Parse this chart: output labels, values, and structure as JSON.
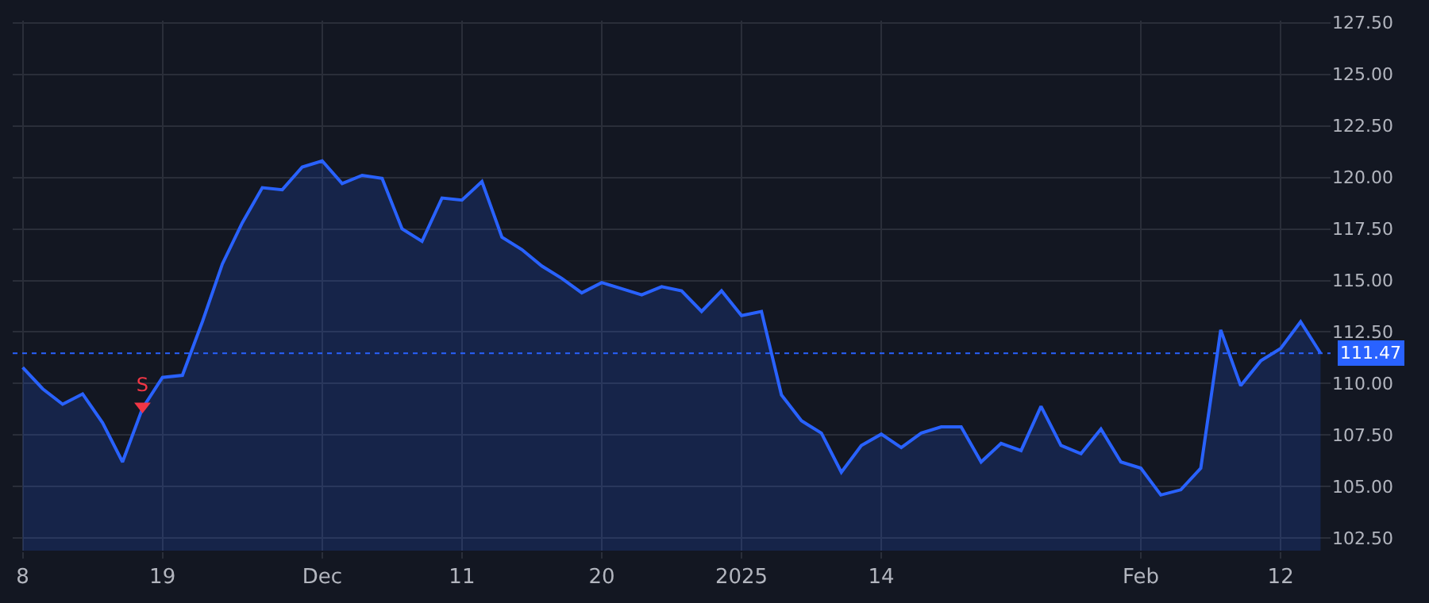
{
  "chart_data": {
    "type": "area",
    "categories": [
      "8",
      null,
      null,
      null,
      null,
      null,
      null,
      "19",
      null,
      null,
      null,
      null,
      null,
      null,
      null,
      "Dec",
      null,
      null,
      null,
      null,
      null,
      null,
      "11",
      null,
      null,
      null,
      null,
      null,
      null,
      "20",
      null,
      null,
      null,
      null,
      null,
      null,
      "2025",
      null,
      null,
      null,
      null,
      null,
      null,
      "14",
      null,
      null,
      null,
      null,
      null,
      null,
      null,
      null,
      null,
      null,
      null,
      null,
      "Feb",
      null,
      null,
      null,
      null,
      null,
      null,
      "12",
      null,
      null
    ],
    "series": [
      {
        "color": "#2962ff",
        "values": [
          110.78,
          109.75,
          109.0,
          109.5,
          108.1,
          106.2,
          108.8,
          110.3,
          110.4,
          113.0,
          115.8,
          117.8,
          119.5,
          119.4,
          120.5,
          120.8,
          119.7,
          120.1,
          119.95,
          117.5,
          116.9,
          119.0,
          118.9,
          119.8,
          117.1,
          116.5,
          115.7,
          115.1,
          114.4,
          114.9,
          114.6,
          114.3,
          114.7,
          114.5,
          113.5,
          114.5,
          113.3,
          113.5,
          109.45,
          108.2,
          107.6,
          105.7,
          107.0,
          107.55,
          106.9,
          107.6,
          107.9,
          107.9,
          106.2,
          107.1,
          106.75,
          108.9,
          107.0,
          106.6,
          107.8,
          106.2,
          105.9,
          104.6,
          104.85,
          105.9,
          112.6,
          109.9,
          111.1,
          111.7,
          113.0,
          111.47
        ]
      },
      {
        "type": "scatter",
        "name": "S",
        "color": "#f23645",
        "marker": "triangle",
        "values": [
          null,
          null,
          null,
          null,
          null,
          null,
          108.9,
          null,
          null,
          null,
          null,
          null,
          null,
          null,
          null,
          null,
          null,
          null,
          null,
          null,
          null,
          null,
          null,
          null,
          null,
          null,
          null,
          null,
          null,
          null,
          null,
          null,
          null,
          null,
          null,
          null,
          null,
          null,
          null,
          null,
          null,
          null,
          null,
          null,
          null,
          null,
          null,
          null,
          null,
          null,
          null,
          null,
          null,
          null,
          null,
          null,
          null,
          null,
          null,
          null,
          null,
          null,
          null,
          null,
          null,
          null
        ]
      }
    ],
    "ylim": [
      101.9,
      127.6
    ],
    "yticks": [
      {
        "value": 102.5,
        "label": "102.50"
      },
      {
        "value": 105,
        "label": "105.00"
      },
      {
        "value": 107.5,
        "label": "107.50"
      },
      {
        "value": 110,
        "label": "110.00"
      },
      {
        "value": 112.5,
        "label": "112.50"
      },
      {
        "value": 115,
        "label": "115.00"
      },
      {
        "value": 117.5,
        "label": "117.50"
      },
      {
        "value": 120,
        "label": "120.00"
      },
      {
        "value": 122.5,
        "label": "122.50"
      },
      {
        "value": 125,
        "label": "125.00"
      },
      {
        "value": 127.5,
        "label": "127.50"
      }
    ],
    "ref_lines": [
      {
        "axis": "y",
        "value": 111.47,
        "label": "111.47",
        "color": "#2962ff",
        "line_style": "dotted"
      }
    ],
    "grid": true
  }
}
